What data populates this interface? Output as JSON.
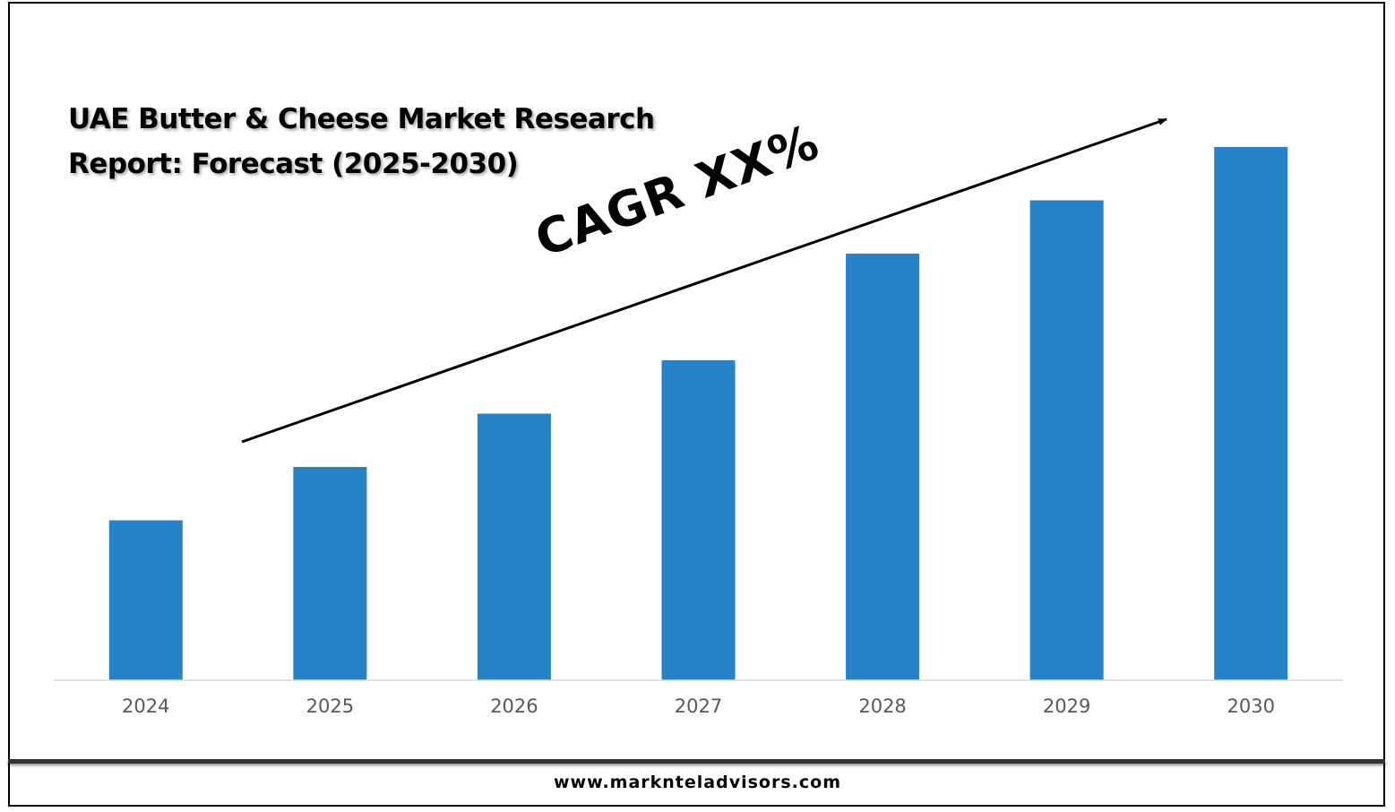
{
  "chart_data": {
    "type": "bar",
    "title": "UAE Butter & Cheese Market Research Report: Forecast (2025-2030)",
    "title_lines": [
      "UAE Butter & Cheese Market Research",
      "Report: Forecast (2025-2030)"
    ],
    "categories": [
      "2024",
      "2025",
      "2026",
      "2027",
      "2028",
      "2029",
      "2030"
    ],
    "values": [
      30,
      40,
      50,
      60,
      80,
      90,
      100
    ],
    "ylim": [
      0,
      100
    ],
    "xlabel": "",
    "ylabel": "",
    "grid": false,
    "legend": "none",
    "bar_color": "#2882C8",
    "annotation": "CAGR XX%"
  },
  "footer": {
    "website": "www.marknteladvisors.com"
  }
}
